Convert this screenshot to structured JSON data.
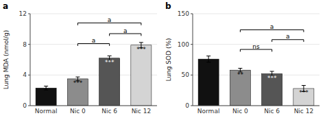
{
  "chart_data": [
    {
      "type": "bar",
      "panel_label": "a",
      "categories": [
        "Normal",
        "Nic 0",
        "Nic 6",
        "Nic 12"
      ],
      "values": [
        2.3,
        3.5,
        6.2,
        7.9
      ],
      "errors": [
        0.25,
        0.25,
        0.3,
        0.35
      ],
      "colors": [
        "#111111",
        "#8c8c8c",
        "#555555",
        "#d4d4d4"
      ],
      "y_label": "Lung MDA (nmol/g)",
      "ylim": [
        0,
        12
      ],
      "yticks": [
        0,
        4,
        8,
        12
      ],
      "star_labels": [
        null,
        "***",
        "***",
        "***"
      ],
      "brackets": [
        {
          "from": "Nic 0",
          "to": "Nic 6",
          "y": 7.8,
          "label": "a"
        },
        {
          "from": "Nic 0",
          "to": "Nic 12",
          "y": 10.5,
          "label": "a"
        },
        {
          "from": "Nic 6",
          "to": "Nic 12",
          "y": 9.1,
          "label": "a"
        }
      ]
    },
    {
      "type": "bar",
      "panel_label": "b",
      "categories": [
        "Normal",
        "Nic 0",
        "Nic 6",
        "Nic 12"
      ],
      "values": [
        76,
        58,
        52,
        28
      ],
      "errors": [
        5,
        3,
        4,
        5
      ],
      "colors": [
        "#111111",
        "#8c8c8c",
        "#555555",
        "#d4d4d4"
      ],
      "y_label": "Lung SOD (%)",
      "ylim": [
        0,
        150
      ],
      "yticks": [
        0,
        50,
        100,
        150
      ],
      "star_labels": [
        null,
        "**",
        "***",
        "***"
      ],
      "brackets": [
        {
          "from": "Nic 0",
          "to": "Nic 6",
          "y": 88,
          "label": "ns"
        },
        {
          "from": "Nic 0",
          "to": "Nic 12",
          "y": 120,
          "label": "a"
        },
        {
          "from": "Nic 6",
          "to": "Nic 12",
          "y": 104,
          "label": "a"
        }
      ]
    }
  ]
}
